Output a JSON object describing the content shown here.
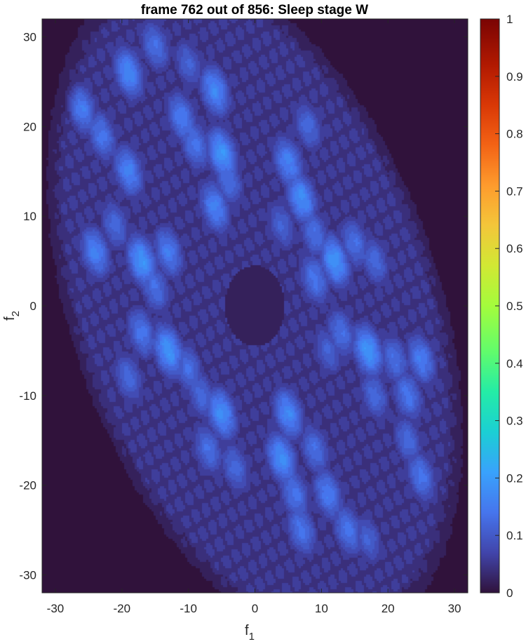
{
  "chart_data": {
    "type": "heatmap",
    "title": "frame 762 out of 856: Sleep stage W",
    "xlabel": {
      "main": "f",
      "sub": "1"
    },
    "ylabel": {
      "main": "f",
      "sub": "2"
    },
    "xlim": [
      -32,
      32
    ],
    "ylim": [
      -32,
      32
    ],
    "xticks": [
      -30,
      -20,
      -10,
      0,
      10,
      20,
      30
    ],
    "yticks": [
      -30,
      -20,
      -10,
      0,
      10,
      20,
      30
    ],
    "colorbar": {
      "colormap": "turbo",
      "range": [
        0,
        1
      ],
      "ticks": [
        0,
        0.1,
        0.2,
        0.3,
        0.4,
        0.5,
        0.6,
        0.7,
        0.8,
        0.9,
        1
      ]
    },
    "background_level": 0.0,
    "envelope": {
      "center": [
        0,
        0
      ],
      "orientation_deg": -58,
      "semi_major": 39,
      "semi_minor": 25
    },
    "stripe_level": 0.07,
    "blobs": [
      {
        "f1": -26,
        "f2": 22,
        "value": 0.16
      },
      {
        "f1": -23,
        "f2": 19,
        "value": 0.15
      },
      {
        "f1": -19,
        "f2": 15,
        "value": 0.17
      },
      {
        "f1": -21,
        "f2": 9,
        "value": 0.13
      },
      {
        "f1": -24,
        "f2": 6,
        "value": 0.17
      },
      {
        "f1": -17,
        "f2": 5,
        "value": 0.2
      },
      {
        "f1": -13,
        "f2": 6,
        "value": 0.16
      },
      {
        "f1": -15,
        "f2": 2,
        "value": 0.14
      },
      {
        "f1": -19,
        "f2": 26,
        "value": 0.18
      },
      {
        "f1": -15,
        "f2": 29,
        "value": 0.14
      },
      {
        "f1": -11,
        "f2": 21,
        "value": 0.16
      },
      {
        "f1": -9,
        "f2": 18,
        "value": 0.15
      },
      {
        "f1": -6,
        "f2": 24,
        "value": 0.18
      },
      {
        "f1": -5,
        "f2": 17,
        "value": 0.2
      },
      {
        "f1": -4,
        "f2": 14,
        "value": 0.14
      },
      {
        "f1": -6,
        "f2": 11,
        "value": 0.17
      },
      {
        "f1": -10,
        "f2": 27,
        "value": 0.12
      },
      {
        "f1": 5,
        "f2": 16,
        "value": 0.17
      },
      {
        "f1": 8,
        "f2": 20,
        "value": 0.13
      },
      {
        "f1": 7,
        "f2": 12,
        "value": 0.19
      },
      {
        "f1": 4,
        "f2": 9,
        "value": 0.12
      },
      {
        "f1": 9,
        "f2": 8,
        "value": 0.14
      },
      {
        "f1": 12,
        "f2": 5,
        "value": 0.2
      },
      {
        "f1": 15,
        "f2": 7,
        "value": 0.14
      },
      {
        "f1": 9,
        "f2": 3,
        "value": 0.15
      },
      {
        "f1": 18,
        "f2": 5,
        "value": 0.13
      },
      {
        "f1": -17,
        "f2": -3,
        "value": 0.15
      },
      {
        "f1": -13,
        "f2": -5,
        "value": 0.2
      },
      {
        "f1": -19,
        "f2": -8,
        "value": 0.13
      },
      {
        "f1": -10,
        "f2": -7,
        "value": 0.14
      },
      {
        "f1": -8,
        "f2": -10,
        "value": 0.13
      },
      {
        "f1": -5,
        "f2": -12,
        "value": 0.19
      },
      {
        "f1": -7,
        "f2": -16,
        "value": 0.14
      },
      {
        "f1": -3,
        "f2": -18,
        "value": 0.13
      },
      {
        "f1": 5,
        "f2": -12,
        "value": 0.18
      },
      {
        "f1": 4,
        "f2": -17,
        "value": 0.19
      },
      {
        "f1": 9,
        "f2": -16,
        "value": 0.14
      },
      {
        "f1": 6,
        "f2": -21,
        "value": 0.15
      },
      {
        "f1": 11,
        "f2": -21,
        "value": 0.16
      },
      {
        "f1": 7,
        "f2": -25,
        "value": 0.15
      },
      {
        "f1": 14,
        "f2": -25,
        "value": 0.15
      },
      {
        "f1": 17,
        "f2": -26,
        "value": 0.12
      },
      {
        "f1": 13,
        "f2": -3,
        "value": 0.14
      },
      {
        "f1": 17,
        "f2": -5,
        "value": 0.2
      },
      {
        "f1": 21,
        "f2": -6,
        "value": 0.14
      },
      {
        "f1": 23,
        "f2": -10,
        "value": 0.15
      },
      {
        "f1": 25,
        "f2": -6,
        "value": 0.16
      },
      {
        "f1": 18,
        "f2": -10,
        "value": 0.13
      },
      {
        "f1": 23,
        "f2": -15,
        "value": 0.13
      },
      {
        "f1": 25,
        "f2": -19,
        "value": 0.15
      },
      {
        "f1": 11,
        "f2": -5,
        "value": 0.12
      }
    ]
  }
}
